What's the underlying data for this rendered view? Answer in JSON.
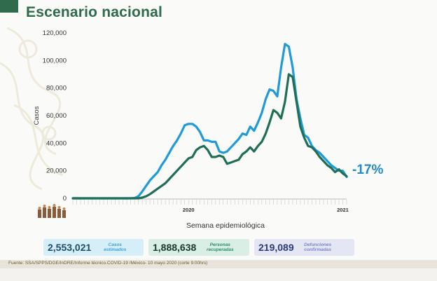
{
  "title": "Escenario nacional",
  "change_label": "-17%",
  "footer": "Fuente: SSA/SPPS/DGE/InDRE/Informe técnico.COVID-19 /México- 10 mayo 2020 (corte 9:00hrs)",
  "stats": [
    {
      "value": "2,553,021",
      "label": "Casos estimados"
    },
    {
      "value": "1,888,638",
      "label": "Personas recuperadas"
    },
    {
      "value": "219,089",
      "label": "Defunciones confirmadas"
    }
  ],
  "colors": {
    "estimated": "#1e9bd8",
    "confirmed": "#1f6e57",
    "title": "#2f6b4c"
  },
  "chart_data": {
    "type": "line",
    "xlabel": "Semana epidemiológica",
    "ylabel": "Casos",
    "ylim": [
      0,
      120000
    ],
    "yticks": [
      "0",
      "20,000",
      "40,000",
      "60,000",
      "80,000",
      "100,000",
      "120,000"
    ],
    "year_labels": [
      {
        "label": "2020",
        "index": 30
      },
      {
        "label": "2021",
        "index": 70
      }
    ],
    "series": [
      {
        "name": "estimated",
        "values": [
          0,
          0,
          0,
          0,
          0,
          0,
          0,
          0,
          0,
          0,
          0,
          0,
          0,
          0,
          0,
          0,
          200,
          1500,
          5000,
          9000,
          13000,
          16000,
          19000,
          24000,
          28000,
          33000,
          38000,
          42000,
          47000,
          53000,
          54000,
          54000,
          52000,
          48000,
          42000,
          42000,
          41000,
          41000,
          34000,
          33000,
          34000,
          37000,
          40000,
          43000,
          47000,
          46000,
          52000,
          49000,
          55000,
          62000,
          72000,
          79000,
          78000,
          74000,
          95000,
          112000,
          110000,
          95000,
          72000,
          58000,
          46000,
          44000,
          38000,
          35000,
          33000,
          30000,
          27000,
          24000,
          22000,
          20000,
          20000,
          15500
        ]
      },
      {
        "name": "confirmed",
        "values": [
          0,
          0,
          0,
          0,
          0,
          0,
          0,
          0,
          0,
          0,
          0,
          0,
          0,
          0,
          0,
          0,
          0,
          0,
          500,
          1500,
          3000,
          5000,
          7000,
          9000,
          11000,
          14000,
          17000,
          20000,
          23000,
          26000,
          29000,
          30000,
          35000,
          37000,
          38000,
          35000,
          30000,
          30000,
          31000,
          30000,
          25000,
          26000,
          27000,
          28000,
          32000,
          34000,
          37000,
          34000,
          38000,
          41000,
          47000,
          55000,
          64000,
          62000,
          58000,
          70000,
          90000,
          88000,
          70000,
          52000,
          44000,
          38000,
          37000,
          34000,
          30000,
          27000,
          24000,
          22000,
          19000,
          21000,
          18000,
          16000
        ]
      }
    ]
  }
}
